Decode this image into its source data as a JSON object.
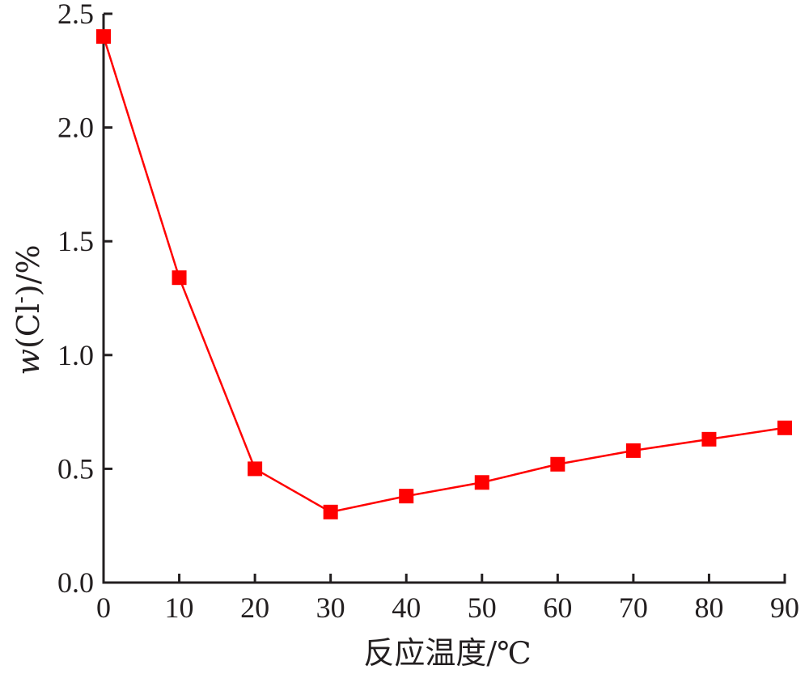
{
  "chart_data": {
    "type": "line",
    "xlabel": "反应温度/℃",
    "ylabel": "w(Cl-)/%",
    "ylabel_parts": {
      "italic": "w",
      "pre": "(Cl",
      "sup": "-",
      "post": ")/%"
    },
    "xlim": [
      0,
      90
    ],
    "ylim": [
      0.0,
      2.5
    ],
    "x_ticks": [
      "0",
      "10",
      "20",
      "30",
      "40",
      "50",
      "60",
      "70",
      "80",
      "90"
    ],
    "y_ticks": [
      "0.0",
      "0.5",
      "1.0",
      "1.5",
      "2.0",
      "2.5"
    ],
    "grid": false,
    "series": [
      {
        "color": "#ff0000",
        "marker": "square",
        "x": [
          0,
          10,
          20,
          30,
          40,
          50,
          60,
          70,
          80,
          90
        ],
        "y": [
          2.4,
          1.34,
          0.5,
          0.31,
          0.38,
          0.44,
          0.52,
          0.58,
          0.63,
          0.68
        ]
      }
    ]
  }
}
